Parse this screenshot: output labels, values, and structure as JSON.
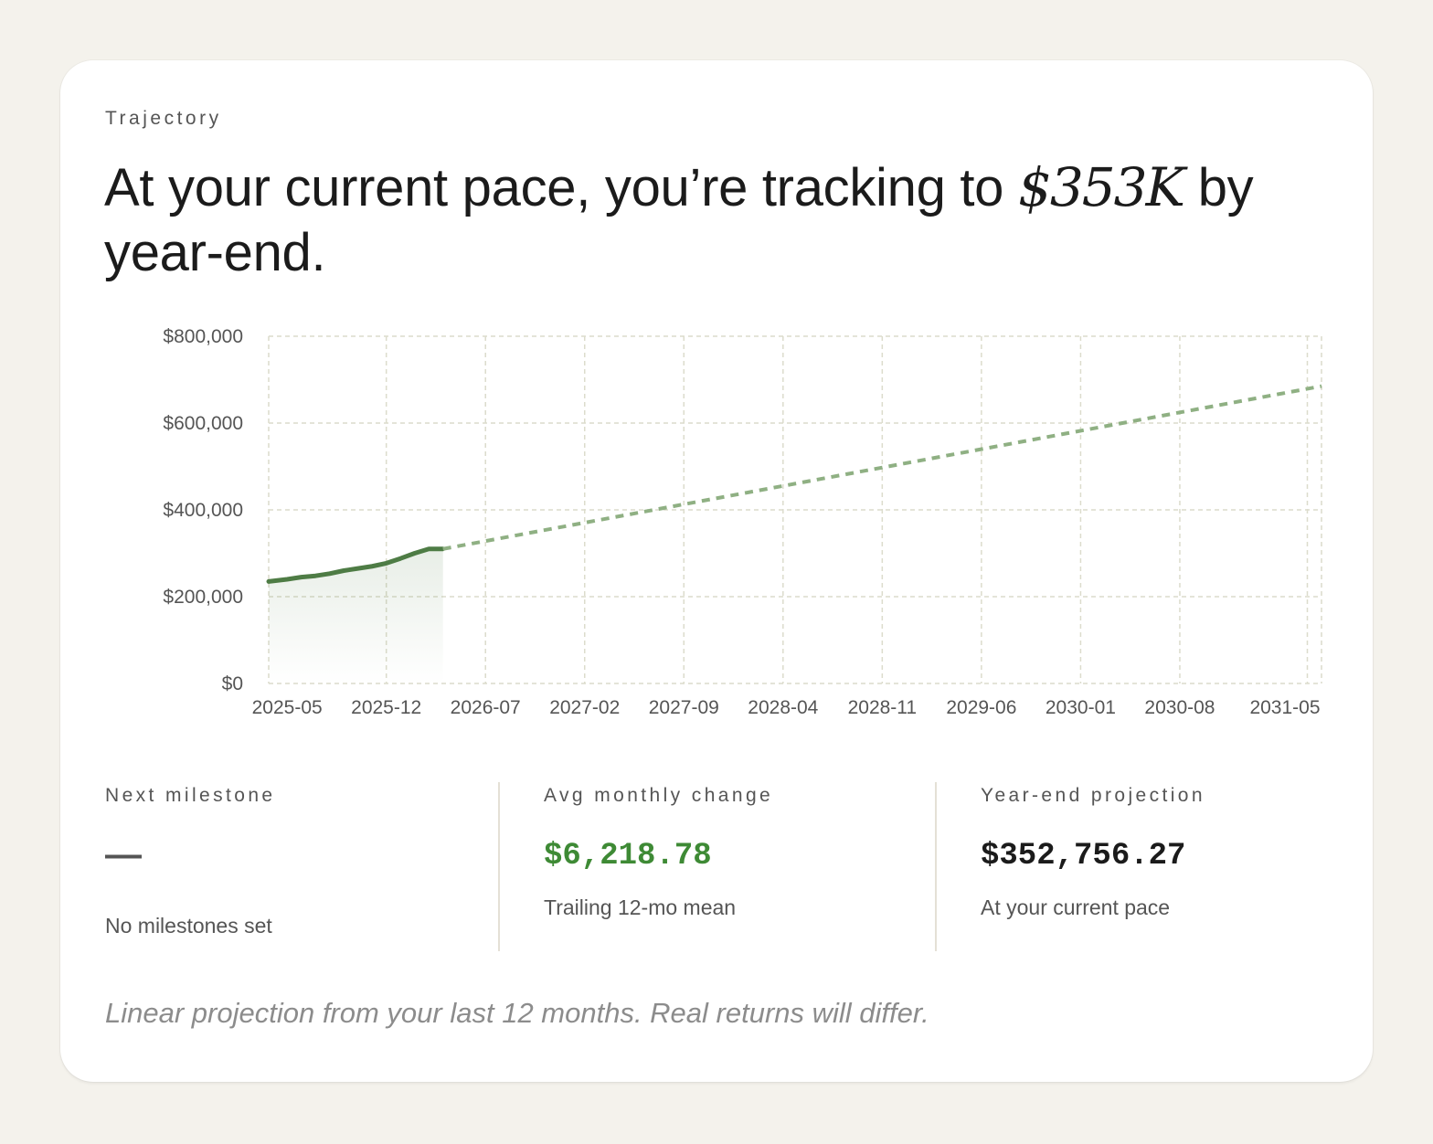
{
  "card": {
    "eyebrow": "Trajectory",
    "headline_before": "At your current pace, you’re tracking to ",
    "headline_amount": "$353K",
    "headline_after": " by year-end."
  },
  "chart_data": {
    "type": "line",
    "y_ticks": [
      "$0",
      "$200,000",
      "$400,000",
      "$600,000",
      "$800,000"
    ],
    "x_ticks": [
      "2025-05",
      "2025-12",
      "2026-07",
      "2027-02",
      "2027-09",
      "2028-04",
      "2028-11",
      "2029-06",
      "2030-01",
      "2030-08",
      "2031-05"
    ],
    "ylim": [
      0,
      800000
    ],
    "series": [
      {
        "style": "solid-with-area",
        "color": "#4e7c45",
        "x": [
          "2025-04",
          "2025-05",
          "2025-06",
          "2025-07",
          "2025-08",
          "2025-09",
          "2025-10",
          "2025-11",
          "2025-12",
          "2026-01",
          "2026-02",
          "2026-03",
          "2026-04"
        ],
        "y": [
          235000,
          240000,
          245000,
          248000,
          253000,
          260000,
          265000,
          270000,
          277000,
          288000,
          300000,
          310000,
          310000
        ]
      },
      {
        "style": "dashed",
        "color": "#8fb083",
        "x": [
          "2026-04",
          "2031-06"
        ],
        "y": [
          310000,
          685000
        ]
      }
    ],
    "grid": true
  },
  "stats": [
    {
      "label": "Next milestone",
      "value": "—",
      "sub": "No milestones set"
    },
    {
      "label": "Avg monthly change",
      "value": "$6,218.78",
      "sub": "Trailing 12-mo mean"
    },
    {
      "label": "Year-end projection",
      "value": "$352,756.27",
      "sub": "At your current pace"
    }
  ],
  "footnote": "Linear projection from your last 12 months. Real returns will differ.",
  "colors": {
    "accent_line": "#4e7c45",
    "projection_line": "#8fb083",
    "positive": "#3e8a35",
    "grid": "#dcdccc"
  }
}
